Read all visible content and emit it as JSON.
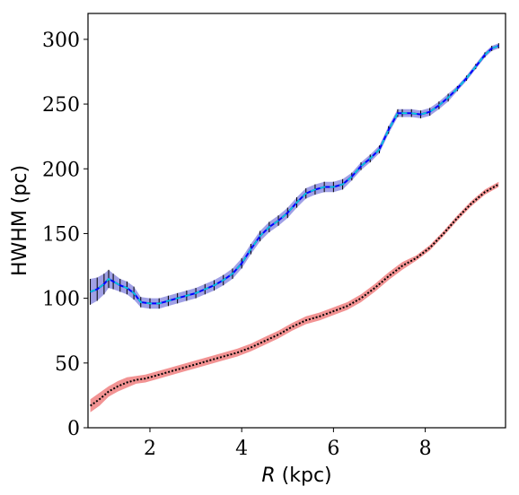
{
  "chart_data": {
    "type": "line",
    "title": "",
    "xlabel": "R (kpc)",
    "xlabel_var": "R",
    "xlabel_unit": " (kpc)",
    "ylabel": "HWHM (pc)",
    "xlim": [
      0.65,
      9.75
    ],
    "ylim": [
      0,
      320
    ],
    "xticks": [
      2,
      4,
      6,
      8
    ],
    "yticks": [
      0,
      50,
      100,
      150,
      200,
      250,
      300
    ],
    "grid": false,
    "legend": "none",
    "series": [
      {
        "band_color": "#8f8fe0",
        "line_color": "#0000ff",
        "dash_color": "#00d7d7",
        "errorbar_color": "#000000",
        "x": [
          0.7,
          0.85,
          1.0,
          1.1,
          1.2,
          1.35,
          1.5,
          1.65,
          1.8,
          2.0,
          2.2,
          2.4,
          2.6,
          2.8,
          3.0,
          3.2,
          3.4,
          3.6,
          3.8,
          4.0,
          4.2,
          4.4,
          4.6,
          4.8,
          5.0,
          5.2,
          5.4,
          5.6,
          5.8,
          6.0,
          6.2,
          6.4,
          6.6,
          6.8,
          7.0,
          7.2,
          7.4,
          7.5,
          7.7,
          7.9,
          8.1,
          8.3,
          8.5,
          8.7,
          8.9,
          9.1,
          9.3,
          9.45,
          9.6
        ],
        "y": [
          105,
          107,
          111,
          115,
          113,
          110,
          108,
          104,
          97,
          96,
          96,
          98,
          100,
          102,
          104,
          107,
          110,
          114,
          119,
          127,
          138,
          148,
          155,
          160,
          166,
          174,
          181,
          184,
          186,
          186,
          188,
          194,
          202,
          208,
          215,
          230,
          243,
          243,
          243,
          242,
          244,
          249,
          255,
          262,
          270,
          279,
          288,
          293,
          295
        ],
        "err": [
          10,
          9,
          8,
          7,
          6,
          5,
          5,
          5,
          4,
          4,
          4,
          4,
          4,
          4,
          4,
          4,
          4,
          4,
          4,
          4,
          4,
          4,
          4,
          4,
          4,
          4,
          4,
          4,
          4,
          4,
          4,
          3,
          3,
          3,
          3,
          3,
          3,
          3,
          3,
          3,
          3,
          3,
          3,
          2,
          2,
          2,
          2,
          2,
          2
        ]
      },
      {
        "band_color": "#f08080",
        "line_color": "#000000",
        "x": [
          0.7,
          0.9,
          1.1,
          1.3,
          1.5,
          1.7,
          1.9,
          2.1,
          2.4,
          2.7,
          3.0,
          3.3,
          3.6,
          3.9,
          4.2,
          4.5,
          4.8,
          5.1,
          5.4,
          5.7,
          6.0,
          6.3,
          6.6,
          6.9,
          7.2,
          7.5,
          7.8,
          8.1,
          8.4,
          8.7,
          9.0,
          9.3,
          9.6
        ],
        "y": [
          17,
          22,
          28,
          32,
          35,
          37,
          38,
          40,
          43,
          46,
          49,
          52,
          55,
          58,
          62,
          67,
          72,
          78,
          83,
          86,
          90,
          94,
          100,
          108,
          117,
          125,
          131,
          139,
          150,
          162,
          173,
          182,
          188
        ],
        "err": [
          5,
          5,
          4,
          4,
          4,
          3,
          3,
          3,
          3,
          3,
          3,
          3,
          3,
          3,
          3,
          3,
          3,
          3,
          3,
          3,
          3,
          3,
          3,
          3,
          3,
          3,
          2,
          2,
          2,
          2,
          2,
          2,
          2
        ]
      }
    ]
  }
}
